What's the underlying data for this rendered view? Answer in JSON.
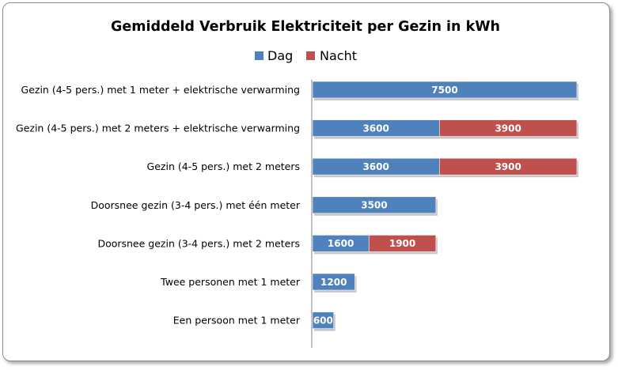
{
  "chart_data": {
    "type": "bar",
    "orientation": "horizontal",
    "stacked": true,
    "title": "Gemiddeld Verbruik Elektriciteit per Gezin in kWh",
    "xlabel": "",
    "ylabel": "",
    "xlim": [
      0,
      7500
    ],
    "grid": false,
    "legend_position": "top",
    "categories": [
      "Gezin (4-5 pers.) met 1 meter + elektrische verwarming",
      "Gezin (4-5 pers.) met 2 meters + elektrische verwarming",
      "Gezin (4-5 pers.) met 2 meters",
      "Doorsnee gezin (3-4 pers.) met één meter",
      "Doorsnee gezin (3-4 pers.) met 2 meters",
      "Twee personen met 1 meter",
      "Een persoon met 1 meter"
    ],
    "series": [
      {
        "name": "Dag",
        "color": "#4f81bd",
        "values": [
          7500,
          3600,
          3600,
          3500,
          1600,
          1200,
          600
        ]
      },
      {
        "name": "Nacht",
        "color": "#c0504d",
        "values": [
          null,
          3900,
          3900,
          null,
          1900,
          null,
          null
        ]
      }
    ]
  }
}
